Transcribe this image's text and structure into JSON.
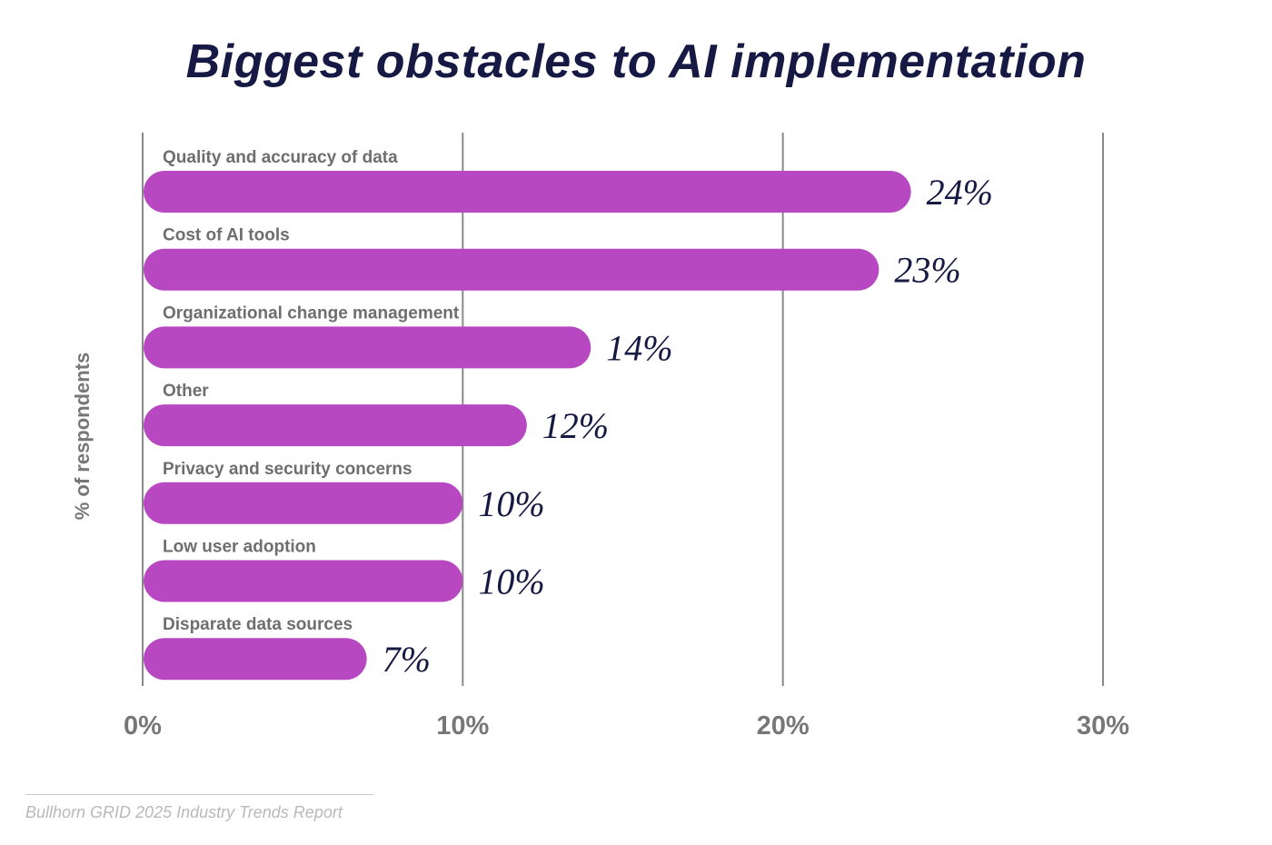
{
  "colors": {
    "bar": "#b848c2",
    "title": "#161944",
    "value_label": "#161944",
    "axis_text": "#777777",
    "category_text": "#6e6e6e",
    "gridline": "#8a8a8a",
    "source_text": "#b9b9b9"
  },
  "chart_data": {
    "type": "bar",
    "orientation": "horizontal",
    "title": "Biggest obstacles to AI implementation",
    "ylabel": "% of respondents",
    "xlim": [
      0,
      30
    ],
    "x_ticks": [
      "0%",
      "10%",
      "20%",
      "30%"
    ],
    "grid": true,
    "categories": [
      "Quality and accuracy of data",
      "Cost of AI tools",
      "Organizational change management",
      "Other",
      "Privacy and security concerns",
      "Low user adoption",
      "Disparate data sources"
    ],
    "values": [
      24,
      23,
      14,
      12,
      10,
      10,
      7
    ],
    "value_labels": [
      "24%",
      "23%",
      "14%",
      "12%",
      "10%",
      "10%",
      "7%"
    ]
  },
  "source": "Bullhorn GRID 2025 Industry Trends Report"
}
